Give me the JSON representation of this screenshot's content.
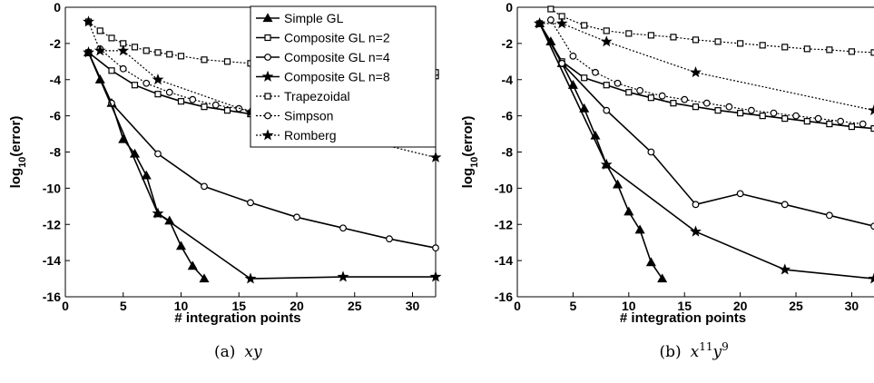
{
  "chart_data": [
    {
      "type": "line",
      "caption_prefix": "(a)",
      "caption_math": "xy",
      "xlabel": "# integration points",
      "ylabel_base": "log",
      "ylabel_sub": "10",
      "ylabel_rest": "(error)",
      "xlim": [
        0,
        32
      ],
      "ylim": [
        -16,
        0
      ],
      "xticks": [
        0,
        5,
        10,
        15,
        20,
        25,
        30
      ],
      "yticks": [
        0,
        -2,
        -4,
        -6,
        -8,
        -10,
        -12,
        -14,
        -16
      ],
      "grid": false,
      "legend_position": "top-right",
      "series": [
        {
          "name": "Simple GL",
          "marker": "triangle",
          "style": "solid",
          "x": [
            2,
            3,
            4,
            5,
            6,
            7,
            8,
            9,
            10,
            11,
            12
          ],
          "y": [
            -2.5,
            -4.0,
            -5.3,
            -7.3,
            -8.1,
            -9.3,
            -11.4,
            -11.8,
            -13.2,
            -14.3,
            -15.0
          ]
        },
        {
          "name": "Composite GL  n=2",
          "marker": "square",
          "style": "solid",
          "x": [
            2,
            4,
            6,
            8,
            10,
            12,
            14,
            16,
            18,
            20,
            22,
            24,
            26,
            28,
            30,
            32
          ],
          "y": [
            -2.5,
            -3.5,
            -4.3,
            -4.8,
            -5.2,
            -5.5,
            -5.7,
            -5.9,
            -6.0,
            -6.1,
            -6.2,
            -6.3,
            -6.3,
            -6.3,
            -6.3,
            -3.8
          ]
        },
        {
          "name": "Composite GL  n=4",
          "marker": "circle",
          "style": "solid",
          "x": [
            2,
            4,
            8,
            12,
            16,
            20,
            24,
            28,
            32
          ],
          "y": [
            -2.5,
            -5.3,
            -8.1,
            -9.9,
            -10.8,
            -11.6,
            -12.2,
            -12.8,
            -13.3
          ]
        },
        {
          "name": "Composite GL  n=8",
          "marker": "star",
          "style": "solid",
          "x": [
            2,
            8,
            16,
            24,
            32
          ],
          "y": [
            -2.5,
            -11.4,
            -15.0,
            -14.9,
            -14.9
          ]
        },
        {
          "name": "Trapezoidal",
          "marker": "square",
          "style": "dotted",
          "x": [
            2,
            3,
            4,
            5,
            6,
            7,
            8,
            9,
            10,
            12,
            14,
            16,
            18,
            20,
            22,
            24,
            26,
            28,
            30,
            32
          ],
          "y": [
            -0.8,
            -1.3,
            -1.7,
            -2.0,
            -2.2,
            -2.4,
            -2.5,
            -2.6,
            -2.7,
            -2.9,
            -3.0,
            -3.1,
            -3.2,
            -3.3,
            -3.35,
            -3.4,
            -3.45,
            -3.5,
            -3.55,
            -3.6
          ]
        },
        {
          "name": "Simpson",
          "marker": "circle",
          "style": "dotted",
          "x": [
            3,
            5,
            7,
            9,
            11,
            13,
            15,
            17,
            19,
            21,
            23,
            25,
            27,
            29,
            31
          ],
          "y": [
            -2.3,
            -3.4,
            -4.2,
            -4.7,
            -5.1,
            -5.4,
            -5.6,
            -5.8,
            -6.0,
            -6.2,
            -6.4,
            -6.6,
            -6.8,
            -7.0,
            -7.2
          ]
        },
        {
          "name": "Romberg",
          "marker": "star",
          "style": "dotted",
          "x": [
            2,
            3,
            5,
            8,
            16,
            32
          ],
          "y": [
            -0.8,
            -2.4,
            -2.4,
            -4.0,
            -5.8,
            -8.3
          ]
        }
      ]
    },
    {
      "type": "line",
      "caption_prefix": "(b)",
      "caption_math_base1": "x",
      "caption_math_sup1": "11",
      "caption_math_base2": "y",
      "caption_math_sup2": "9",
      "xlabel": "# integration points",
      "ylabel_base": "log",
      "ylabel_sub": "10",
      "ylabel_rest": "(error)",
      "xlim": [
        0,
        32
      ],
      "ylim": [
        -16,
        0
      ],
      "xticks": [
        0,
        5,
        10,
        15,
        20,
        25,
        30
      ],
      "yticks": [
        0,
        -2,
        -4,
        -6,
        -8,
        -10,
        -12,
        -14,
        -16
      ],
      "grid": false,
      "series": [
        {
          "name": "Simple GL",
          "marker": "triangle",
          "style": "solid",
          "x": [
            2,
            3,
            4,
            5,
            6,
            7,
            8,
            9,
            10,
            11,
            12,
            13
          ],
          "y": [
            -0.9,
            -1.9,
            -3.1,
            -4.3,
            -5.6,
            -7.1,
            -8.7,
            -9.8,
            -11.3,
            -12.3,
            -14.1,
            -15.0
          ]
        },
        {
          "name": "Composite GL  n=2",
          "marker": "square",
          "style": "solid",
          "x": [
            2,
            4,
            6,
            8,
            10,
            12,
            14,
            16,
            18,
            20,
            22,
            24,
            26,
            28,
            30,
            32
          ],
          "y": [
            -0.9,
            -3.0,
            -3.9,
            -4.3,
            -4.7,
            -5.0,
            -5.3,
            -5.5,
            -5.7,
            -5.85,
            -6.0,
            -6.15,
            -6.3,
            -6.45,
            -6.6,
            -6.7
          ]
        },
        {
          "name": "Composite GL  n=4",
          "marker": "circle",
          "style": "solid",
          "x": [
            2,
            4,
            8,
            12,
            16,
            20,
            24,
            28,
            32
          ],
          "y": [
            -0.9,
            -3.1,
            -5.7,
            -8.0,
            -10.9,
            -10.3,
            -10.9,
            -11.5,
            -12.1
          ]
        },
        {
          "name": "Composite GL  n=8",
          "marker": "star",
          "style": "solid",
          "x": [
            2,
            8,
            16,
            24,
            32
          ],
          "y": [
            -0.9,
            -8.7,
            -12.4,
            -14.5,
            -15.0
          ]
        },
        {
          "name": "Trapezoidal",
          "marker": "square",
          "style": "dotted",
          "x": [
            3,
            4,
            6,
            8,
            10,
            12,
            14,
            16,
            18,
            20,
            22,
            24,
            26,
            28,
            30,
            32
          ],
          "y": [
            -0.1,
            -0.5,
            -1.0,
            -1.3,
            -1.45,
            -1.55,
            -1.65,
            -1.8,
            -1.9,
            -2.0,
            -2.1,
            -2.2,
            -2.3,
            -2.35,
            -2.45,
            -2.5
          ]
        },
        {
          "name": "Simpson",
          "marker": "circle",
          "style": "dotted",
          "x": [
            3,
            5,
            7,
            9,
            11,
            13,
            15,
            17,
            19,
            21,
            23,
            25,
            27,
            29,
            31
          ],
          "y": [
            -0.7,
            -2.7,
            -3.6,
            -4.2,
            -4.6,
            -4.9,
            -5.1,
            -5.3,
            -5.5,
            -5.7,
            -5.85,
            -6.0,
            -6.15,
            -6.3,
            -6.45
          ]
        },
        {
          "name": "Romberg",
          "marker": "star",
          "style": "dotted",
          "x": [
            2,
            4,
            8,
            16,
            32
          ],
          "y": [
            -0.9,
            -0.9,
            -1.9,
            -3.6,
            -5.7
          ]
        }
      ]
    }
  ]
}
